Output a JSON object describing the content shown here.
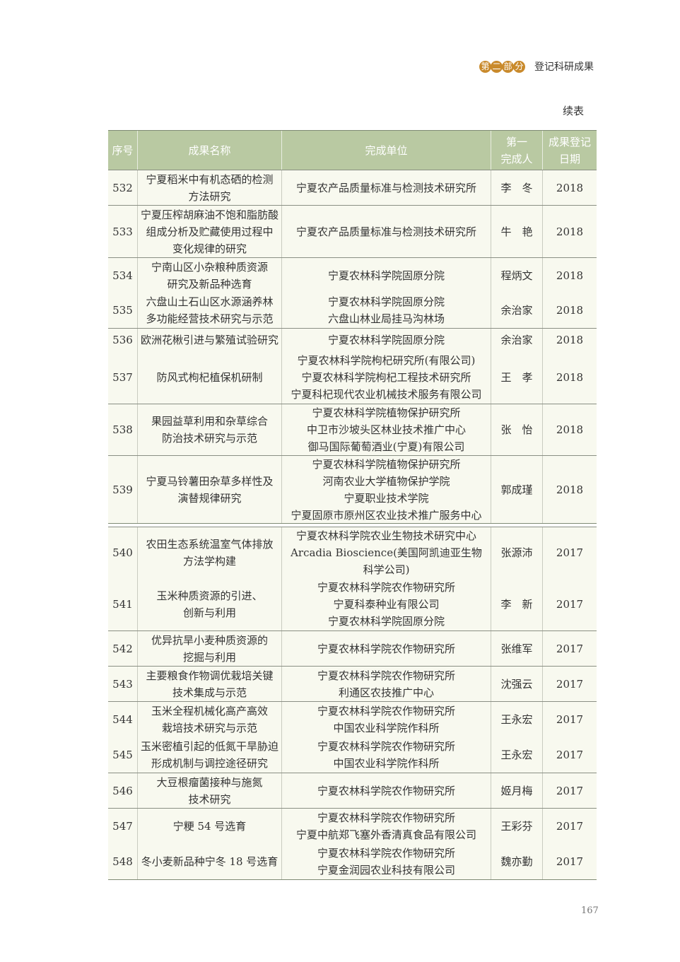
{
  "header": {
    "badge_chars": [
      "第",
      "二",
      "部",
      "分"
    ],
    "section": "登记科研成果"
  },
  "continued": "续表",
  "page_number": "167",
  "colors": {
    "header_bg": "#b9c9a2",
    "badge": "#c98a2c",
    "row_bg": "#f8f9ef"
  },
  "columns": [
    "序号",
    "成果名称",
    "完成单位",
    "第一\n完成人",
    "成果登记\n日期"
  ],
  "rows": [
    {
      "no": "532",
      "name": "宁夏稻米中有机态硒的检测\n方法研究",
      "unit": "宁夏农产品质量标准与检测技术研究所",
      "person": "李　冬",
      "year": "2018"
    },
    {
      "no": "533",
      "name": "宁夏压榨胡麻油不饱和脂肪酸\n组成分析及贮藏使用过程中\n变化规律的研究",
      "unit": "宁夏农产品质量标准与检测技术研究所",
      "person": "牛　艳",
      "year": "2018"
    },
    {
      "no": "534",
      "name": "宁南山区小杂粮种质资源\n研究及新品种选育",
      "unit": "宁夏农林科学院固原分院",
      "person": "程炳文",
      "year": "2018"
    },
    {
      "no": "535",
      "name": "六盘山土石山区水源涵养林\n多功能经营技术研究与示范",
      "unit": "宁夏农林科学院固原分院\n六盘山林业局挂马沟林场",
      "person": "余治家",
      "year": "2018"
    },
    {
      "no": "536",
      "name": "欧洲花楸引进与繁殖试验研究",
      "unit": "宁夏农林科学院固原分院",
      "person": "余治家",
      "year": "2018"
    },
    {
      "no": "537",
      "name": "防风式枸杞植保机研制",
      "unit": "宁夏农林科学院枸杞研究所(有限公司)\n宁夏农林科学院枸杞工程技术研究所\n宁夏科杞现代农业机械技术服务有限公司",
      "person": "王　孝",
      "year": "2018"
    },
    {
      "no": "538",
      "name": "果园益草利用和杂草综合\n防治技术研究与示范",
      "unit": "宁夏农林科学院植物保护研究所\n中卫市沙坡头区林业技术推广中心\n御马国际葡萄酒业(宁夏)有限公司",
      "person": "张　怡",
      "year": "2018"
    },
    {
      "no": "539",
      "name": "宁夏马铃薯田杂草多样性及\n演替规律研究",
      "unit": "宁夏农林科学院植物保护研究所\n河南农业大学植物保护学院\n宁夏职业技术学院\n宁夏固原市原州区农业技术推广服务中心",
      "person": "郭成瑾",
      "year": "2018"
    },
    {
      "no": "540",
      "name": "农田生态系统温室气体排放\n方法学构建",
      "unit": "宁夏农林科学院农业生物技术研究中心\nArcadia Bioscience(美国阿凯迪亚生物\n科学公司)",
      "person": "张源沛",
      "year": "2017"
    },
    {
      "no": "541",
      "name": "玉米种质资源的引进、\n创新与利用",
      "unit": "宁夏农林科学院农作物研究所\n宁夏科泰种业有限公司\n宁夏农林科学院固原分院",
      "person": "李　新",
      "year": "2017"
    },
    {
      "no": "542",
      "name": "优异抗旱小麦种质资源的\n挖掘与利用",
      "unit": "宁夏农林科学院农作物研究所",
      "person": "张维军",
      "year": "2017"
    },
    {
      "no": "543",
      "name": "主要粮食作物调优栽培关键\n技术集成与示范",
      "unit": "宁夏农林科学院农作物研究所\n利通区农技推广中心",
      "person": "沈强云",
      "year": "2017"
    },
    {
      "no": "544",
      "name": "玉米全程机械化高产高效\n栽培技术研究与示范",
      "unit": "宁夏农林科学院农作物研究所\n中国农业科学院作科所",
      "person": "王永宏",
      "year": "2017"
    },
    {
      "no": "545",
      "name": "玉米密植引起的低氮干旱胁迫\n形成机制与调控途径研究",
      "unit": "宁夏农林科学院农作物研究所\n中国农业科学院作科所",
      "person": "王永宏",
      "year": "2017"
    },
    {
      "no": "546",
      "name": "大豆根瘤菌接种与施氮\n技术研究",
      "unit": "宁夏农林科学院农作物研究所",
      "person": "姬月梅",
      "year": "2017"
    },
    {
      "no": "547",
      "name": "宁粳 54 号选育",
      "unit": "宁夏农林科学院农作物研究所\n宁夏中航郑飞塞外香清真食品有限公司",
      "person": "王彩芬",
      "year": "2017"
    },
    {
      "no": "548",
      "name": "冬小麦新品种宁冬 18 号选育",
      "unit": "宁夏农林科学院农作物研究所\n宁夏金润园农业科技有限公司",
      "person": "魏亦勤",
      "year": "2017"
    }
  ]
}
